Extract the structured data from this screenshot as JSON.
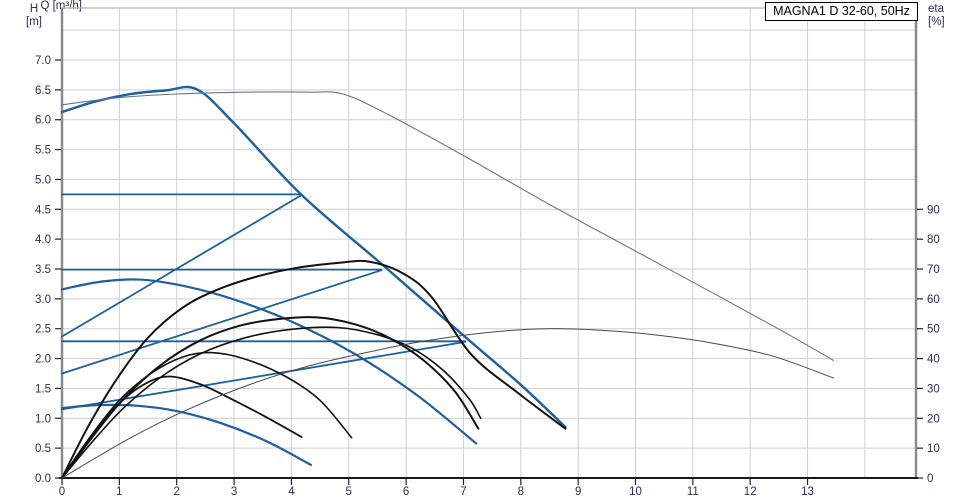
{
  "chart": {
    "title": "MAGNA1 D 32-60, 50Hz",
    "axes": {
      "h": {
        "line1": "H",
        "line2": "[m]"
      },
      "eta": {
        "line1": "eta",
        "line2": "[%]"
      },
      "q": {
        "label": "Q [m³/h]"
      }
    }
  },
  "chart_data": {
    "type": "line",
    "title": "MAGNA1 D 32-60, 50Hz",
    "xlabel": "Q [m³/h]",
    "ylabel_left": "H [m]",
    "ylabel_right": "eta [%]",
    "x_range": [
      0,
      14.9
    ],
    "h_range": [
      0,
      7.87
    ],
    "eta_range": [
      0,
      157
    ],
    "grid": {
      "v": [
        1,
        2,
        3,
        4,
        5,
        6,
        7,
        8,
        9,
        10,
        11,
        12,
        13,
        14
      ],
      "h": [
        0.5,
        1.0,
        1.5,
        2.0,
        2.5,
        3.0,
        3.5,
        4.0,
        4.5,
        5.0,
        5.5,
        6.0,
        6.5,
        7.0,
        7.5
      ]
    },
    "h_ticks": [
      {
        "v": 0.0,
        "t": "0.0"
      },
      {
        "v": 0.5,
        "t": "0.5"
      },
      {
        "v": 1.0,
        "t": "1.0"
      },
      {
        "v": 1.5,
        "t": "1.5"
      },
      {
        "v": 2.0,
        "t": "2.0"
      },
      {
        "v": 2.5,
        "t": "2.5"
      },
      {
        "v": 3.0,
        "t": "3.0"
      },
      {
        "v": 3.5,
        "t": "3.5"
      },
      {
        "v": 4.0,
        "t": "4.0"
      },
      {
        "v": 4.5,
        "t": "4.5"
      },
      {
        "v": 5.0,
        "t": "5.0"
      },
      {
        "v": 5.5,
        "t": "5.5"
      },
      {
        "v": 6.0,
        "t": "6.0"
      },
      {
        "v": 6.5,
        "t": "6.5"
      },
      {
        "v": 7.0,
        "t": "7.0"
      }
    ],
    "q_ticks": [
      0,
      1,
      2,
      3,
      4,
      5,
      6,
      7,
      8,
      9,
      10,
      11,
      12,
      13
    ],
    "eta_ticks": [
      0,
      10,
      20,
      30,
      40,
      50,
      60,
      70,
      80,
      90
    ],
    "colors": {
      "pump_curve_blue": "#1e5f9e",
      "parallel_curve_slate": "#64748f",
      "efficiency_black": "#121212",
      "efficiency_parallel_gray": "#4a4a4a",
      "grid": "#cfcfcf",
      "tick_text": "#2c2c55"
    },
    "series": [
      {
        "name": "qh-max-speed",
        "axis": "H",
        "color": "#1e5f9e",
        "width": 2.4,
        "points": [
          [
            0,
            6.13
          ],
          [
            0.6,
            6.31
          ],
          [
            1.2,
            6.43
          ],
          [
            1.8,
            6.49
          ],
          [
            2.35,
            6.51
          ],
          [
            3.0,
            5.94
          ],
          [
            4.18,
            4.74
          ],
          [
            5.6,
            3.56
          ],
          [
            6.96,
            2.42
          ],
          [
            8.0,
            1.56
          ],
          [
            8.78,
            0.85
          ]
        ]
      },
      {
        "name": "qh-mid-speed",
        "axis": "H",
        "color": "#1e5f9e",
        "width": 2.2,
        "points": [
          [
            0,
            3.16
          ],
          [
            0.7,
            3.29
          ],
          [
            1.4,
            3.32
          ],
          [
            2.2,
            3.2
          ],
          [
            3.0,
            2.99
          ],
          [
            4.0,
            2.62
          ],
          [
            5.1,
            2.08
          ],
          [
            6.2,
            1.38
          ],
          [
            7.22,
            0.58
          ]
        ]
      },
      {
        "name": "qh-min-speed",
        "axis": "H",
        "color": "#1e5f9e",
        "width": 2.2,
        "points": [
          [
            0,
            1.17
          ],
          [
            0.6,
            1.22
          ],
          [
            1.3,
            1.21
          ],
          [
            2.0,
            1.12
          ],
          [
            2.8,
            0.91
          ],
          [
            3.6,
            0.6
          ],
          [
            4.34,
            0.22
          ]
        ]
      },
      {
        "name": "control-const-4p75",
        "axis": "H",
        "color": "#1e5f9e",
        "width": 1.8,
        "points": [
          [
            0,
            4.75
          ],
          [
            4.18,
            4.75
          ]
        ]
      },
      {
        "name": "control-const-3p5",
        "axis": "H",
        "color": "#1e5f9e",
        "width": 1.8,
        "points": [
          [
            0,
            3.49
          ],
          [
            5.57,
            3.49
          ]
        ]
      },
      {
        "name": "control-const-2p3",
        "axis": "H",
        "color": "#1e5f9e",
        "width": 1.8,
        "points": [
          [
            0,
            2.29
          ],
          [
            7.03,
            2.29
          ]
        ]
      },
      {
        "name": "control-prop-4p75",
        "axis": "H",
        "color": "#1e5f9e",
        "width": 1.8,
        "points": [
          [
            0,
            2.37
          ],
          [
            4.18,
            4.74
          ]
        ]
      },
      {
        "name": "control-prop-3p5",
        "axis": "H",
        "color": "#1e5f9e",
        "width": 1.8,
        "points": [
          [
            0,
            1.75
          ],
          [
            5.57,
            3.48
          ]
        ]
      },
      {
        "name": "control-prop-2p3",
        "axis": "H",
        "color": "#1e5f9e",
        "width": 1.8,
        "points": [
          [
            0,
            1.15
          ],
          [
            7.03,
            2.28
          ]
        ]
      },
      {
        "name": "qh-parallel-operation",
        "axis": "H",
        "color": "#64748f",
        "width": 1.1,
        "points": [
          [
            0,
            6.25
          ],
          [
            1,
            6.37
          ],
          [
            2,
            6.43
          ],
          [
            3.2,
            6.46
          ],
          [
            4.3,
            6.46
          ],
          [
            4.9,
            6.43
          ],
          [
            5.7,
            6.08
          ],
          [
            7,
            5.4
          ],
          [
            8.5,
            4.58
          ],
          [
            10,
            3.8
          ],
          [
            11.5,
            3.02
          ],
          [
            12.6,
            2.44
          ],
          [
            13.45,
            1.97
          ]
        ]
      },
      {
        "name": "eta-max-speed",
        "axis": "eta",
        "color": "#121212",
        "width": 2.0,
        "points": [
          [
            0,
            0
          ],
          [
            0.45,
            17
          ],
          [
            0.95,
            33
          ],
          [
            1.5,
            47
          ],
          [
            2.1,
            57
          ],
          [
            2.7,
            63
          ],
          [
            3.4,
            67.5
          ],
          [
            4.1,
            70.4
          ],
          [
            4.8,
            72
          ],
          [
            5.35,
            72.5
          ],
          [
            5.95,
            68.5
          ],
          [
            6.45,
            60.5
          ],
          [
            7.13,
            41.5
          ],
          [
            7.95,
            28.5
          ],
          [
            8.78,
            16.5
          ]
        ]
      },
      {
        "name": "eta-mid-speed",
        "axis": "eta",
        "color": "#121212",
        "width": 2.0,
        "points": [
          [
            0,
            0
          ],
          [
            0.5,
            13
          ],
          [
            1.05,
            26
          ],
          [
            1.7,
            37.5
          ],
          [
            2.4,
            46
          ],
          [
            3.1,
            51
          ],
          [
            3.8,
            53.3
          ],
          [
            4.45,
            53.8
          ],
          [
            5.1,
            51.5
          ],
          [
            5.7,
            47
          ],
          [
            6.3,
            39.5
          ],
          [
            6.85,
            29
          ],
          [
            7.26,
            16.5
          ]
        ]
      },
      {
        "name": "eta-mid-speed-2",
        "axis": "eta",
        "color": "#121212",
        "width": 1.6,
        "points": [
          [
            0,
            0
          ],
          [
            0.5,
            11.5
          ],
          [
            1.05,
            23
          ],
          [
            1.7,
            33.5
          ],
          [
            2.4,
            41.5
          ],
          [
            3.2,
            47
          ],
          [
            4.0,
            49.8
          ],
          [
            4.8,
            50.4
          ],
          [
            5.5,
            48
          ],
          [
            6.1,
            43.5
          ],
          [
            6.65,
            36
          ],
          [
            7.1,
            26.5
          ],
          [
            7.3,
            20
          ]
        ]
      },
      {
        "name": "eta-low-speed",
        "axis": "eta",
        "color": "#121212",
        "width": 1.6,
        "points": [
          [
            0,
            0
          ],
          [
            0.5,
            14
          ],
          [
            1.0,
            26
          ],
          [
            1.55,
            35
          ],
          [
            2.1,
            40.5
          ],
          [
            2.6,
            42
          ],
          [
            3.2,
            39.8
          ],
          [
            3.9,
            34
          ],
          [
            4.5,
            26
          ],
          [
            5.05,
            13.5
          ]
        ]
      },
      {
        "name": "eta-min-speed",
        "axis": "eta",
        "color": "#121212",
        "width": 1.8,
        "points": [
          [
            0,
            0
          ],
          [
            0.45,
            12.5
          ],
          [
            0.95,
            24
          ],
          [
            1.4,
            31
          ],
          [
            1.85,
            34
          ],
          [
            2.4,
            31.5
          ],
          [
            2.95,
            26.5
          ],
          [
            3.55,
            20.5
          ],
          [
            4.18,
            13.7
          ]
        ]
      },
      {
        "name": "eta-parallel-operation",
        "axis": "eta",
        "color": "#4a4a4a",
        "width": 1.0,
        "points": [
          [
            0,
            0
          ],
          [
            1.2,
            13.5
          ],
          [
            2.2,
            23
          ],
          [
            3.3,
            31.5
          ],
          [
            4.3,
            37.5
          ],
          [
            5.3,
            42
          ],
          [
            6.3,
            45.8
          ],
          [
            7.4,
            48.7
          ],
          [
            8.4,
            50
          ],
          [
            9.4,
            49.5
          ],
          [
            10.4,
            47.8
          ],
          [
            11.4,
            45
          ],
          [
            12.4,
            40.8
          ],
          [
            13.45,
            33.5
          ]
        ]
      }
    ]
  }
}
